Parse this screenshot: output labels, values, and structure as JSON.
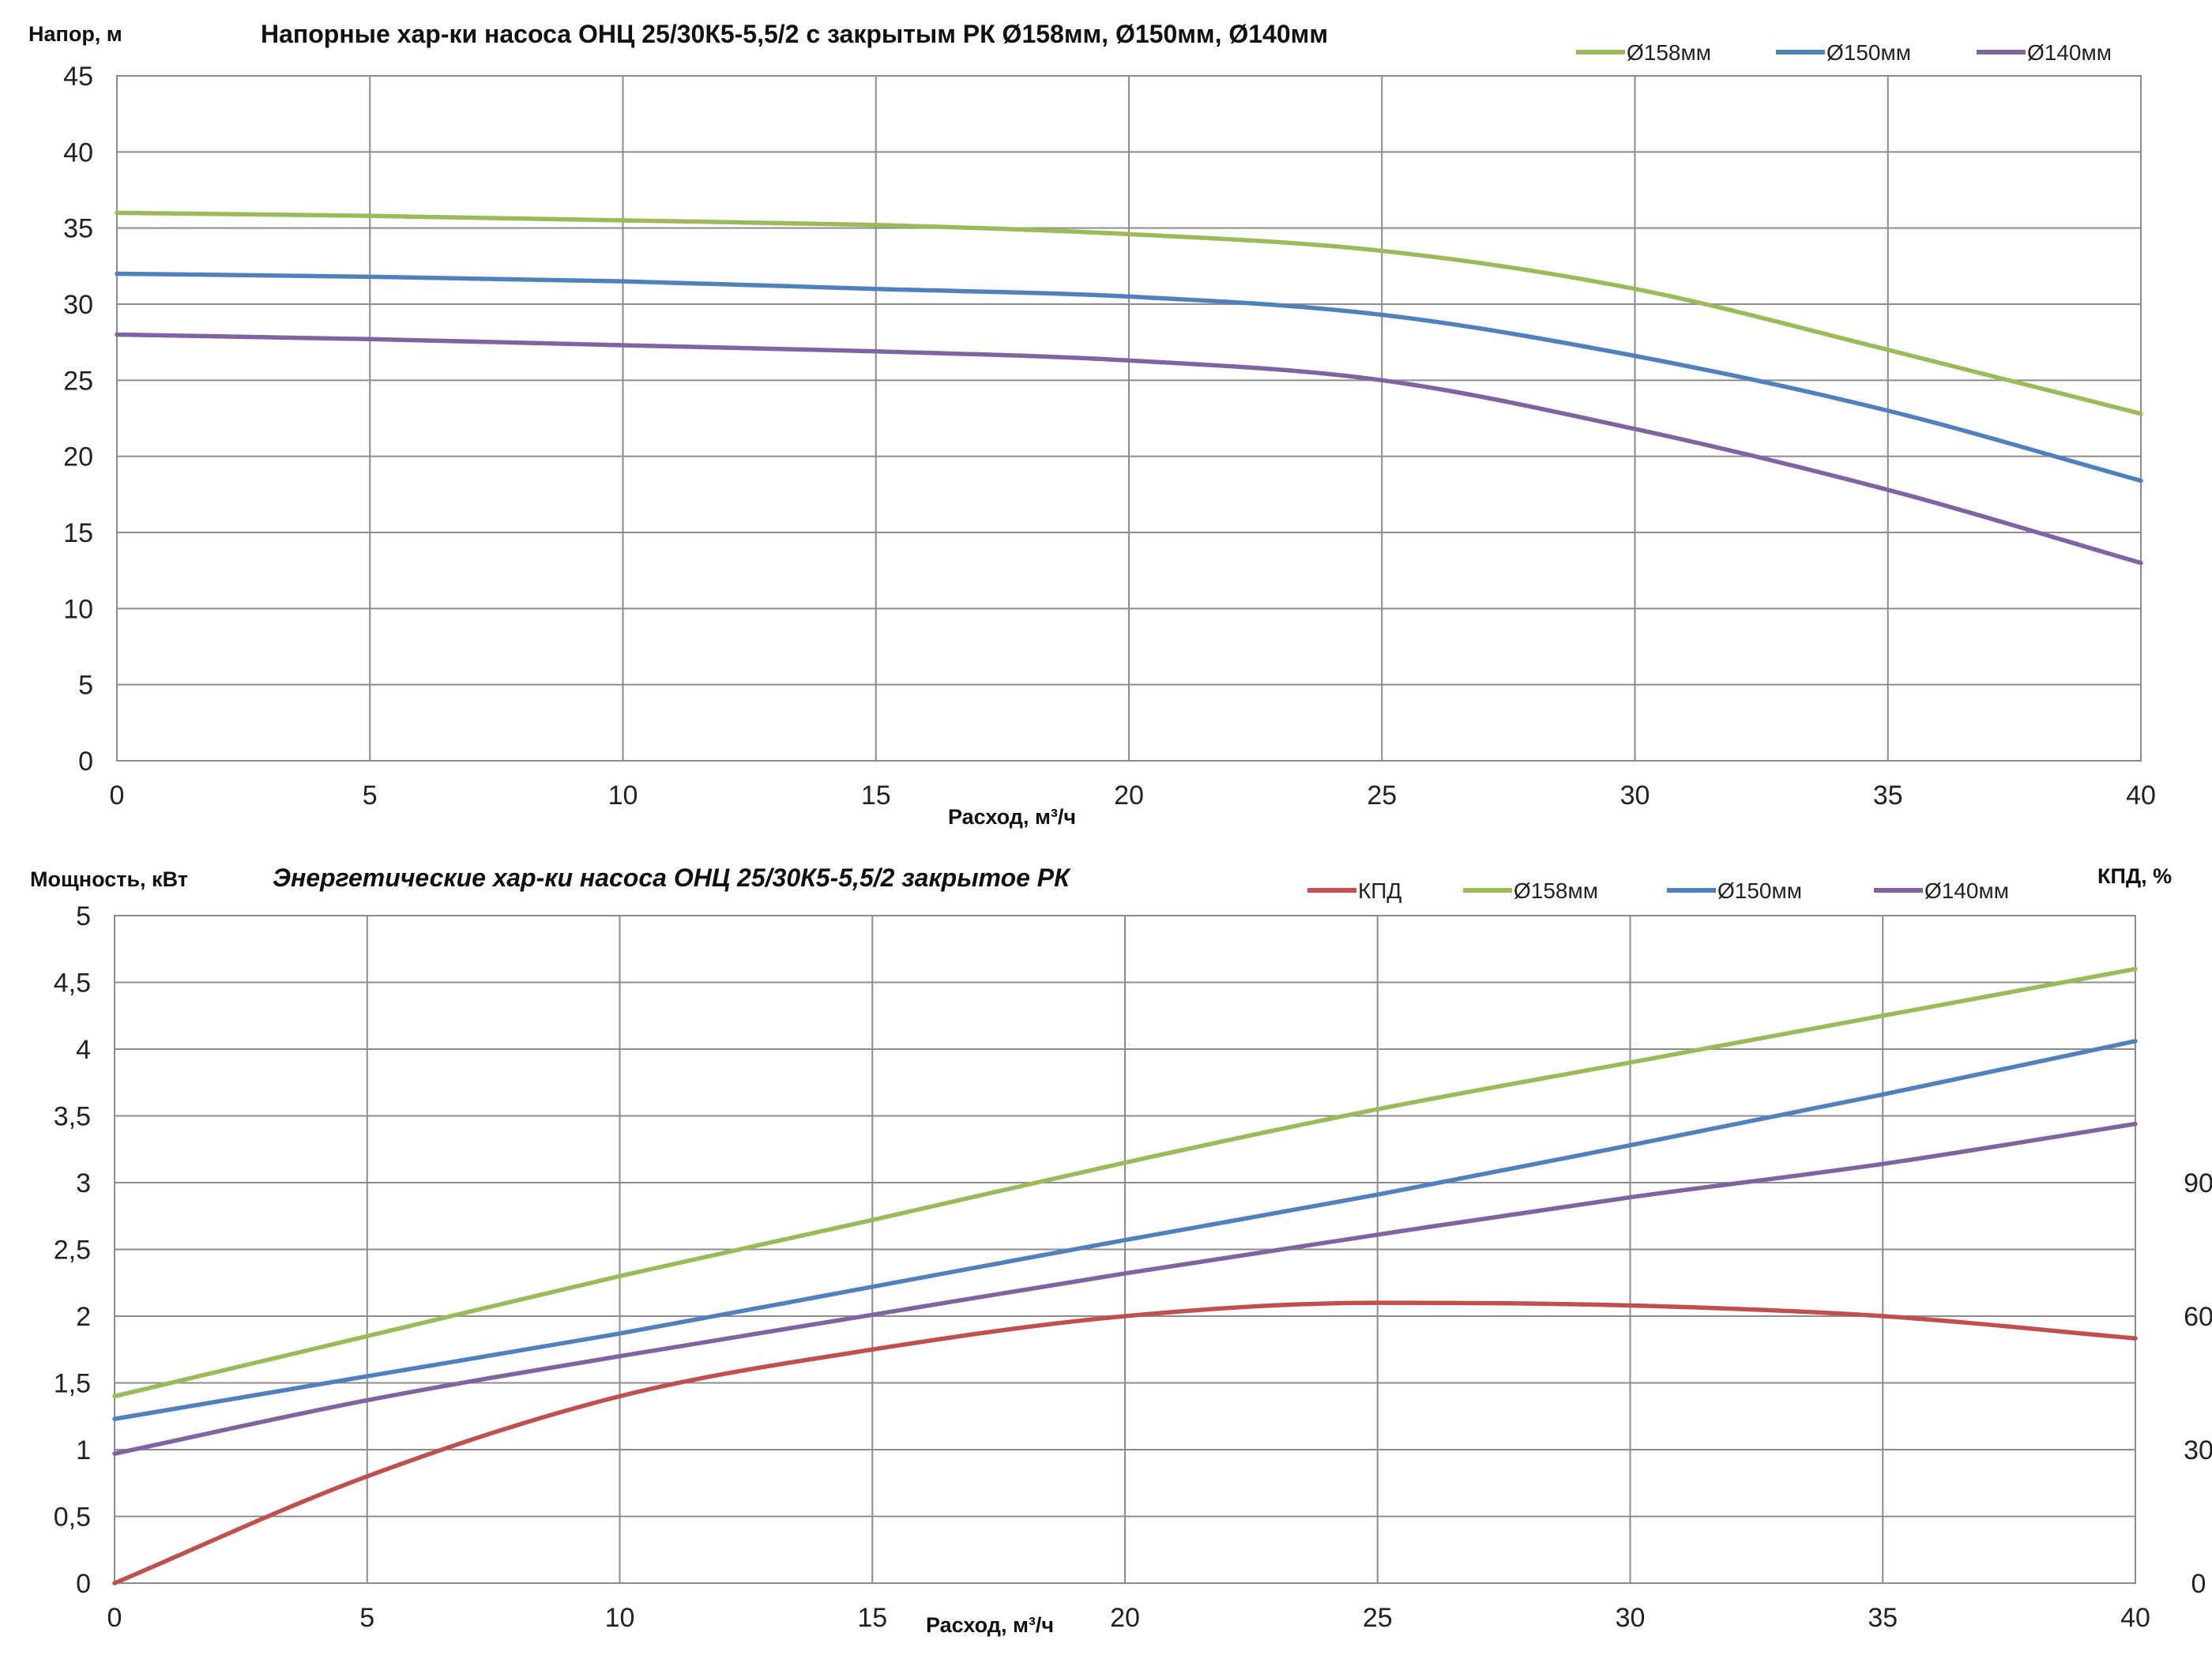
{
  "chart_data": [
    {
      "type": "line",
      "title": "Напорные хар-ки насоса ОНЦ 25/30К5-5,5/2 с закрытым РК Ø158мм, Ø150мм, Ø140мм",
      "xlabel": "Расход, м³/ч",
      "ylabel": "Напор, м",
      "xlim": [
        0,
        40
      ],
      "ylim": [
        0,
        45
      ],
      "x_ticks": [
        "0",
        "5",
        "10",
        "15",
        "20",
        "25",
        "30",
        "35",
        "40"
      ],
      "y_ticks": [
        "0",
        "5",
        "10",
        "15",
        "20",
        "25",
        "30",
        "35",
        "40",
        "45"
      ],
      "grid": true,
      "legend_position": "top-right",
      "x": [
        0,
        5,
        10,
        15,
        20,
        25,
        30,
        35,
        40
      ],
      "series": [
        {
          "name": "Ø158мм",
          "color": "#9bbb59",
          "values": [
            36.0,
            35.8,
            35.5,
            35.2,
            34.6,
            33.5,
            31.0,
            27.0,
            22.8
          ]
        },
        {
          "name": "Ø150мм",
          "color": "#4f81bd",
          "values": [
            32.0,
            31.8,
            31.5,
            31.0,
            30.5,
            29.3,
            26.6,
            23.0,
            18.4
          ]
        },
        {
          "name": "Ø140мм",
          "color": "#8064a2",
          "values": [
            28.0,
            27.7,
            27.3,
            26.9,
            26.3,
            25.0,
            21.8,
            17.8,
            13.0
          ]
        }
      ]
    },
    {
      "type": "line",
      "title": "Энергетические хар-ки насоса ОНЦ 25/30К5-5,5/2 закрытое РК",
      "xlabel": "Расход, м³/ч",
      "ylabel": "Мощность, кВт",
      "y2label": "КПД, %",
      "xlim": [
        0,
        40
      ],
      "ylim": [
        0,
        5
      ],
      "y2lim": [
        0,
        150
      ],
      "x_ticks": [
        "0",
        "5",
        "10",
        "15",
        "20",
        "25",
        "30",
        "35",
        "40"
      ],
      "y_ticks": [
        "0",
        "0,5",
        "1",
        "1,5",
        "2",
        "2,5",
        "3",
        "3,5",
        "4",
        "4,5",
        "5"
      ],
      "y2_ticks": [
        "0",
        "30",
        "60",
        "90"
      ],
      "grid": true,
      "legend_position": "top-right",
      "x": [
        0,
        5,
        10,
        15,
        20,
        25,
        30,
        35,
        40
      ],
      "series": [
        {
          "name": "КПД",
          "color": "#c0504d",
          "axis": "right",
          "values": [
            0,
            24,
            42,
            52.5,
            60,
            63,
            62.4,
            60,
            55
          ]
        },
        {
          "name": "Ø158мм",
          "color": "#9bbb59",
          "axis": "left",
          "values": [
            1.4,
            1.85,
            2.3,
            2.72,
            3.15,
            3.55,
            3.9,
            4.25,
            4.6
          ]
        },
        {
          "name": "Ø150мм",
          "color": "#4f81bd",
          "axis": "left",
          "values": [
            1.23,
            1.55,
            1.87,
            2.22,
            2.57,
            2.91,
            3.28,
            3.66,
            4.06
          ]
        },
        {
          "name": "Ø140мм",
          "color": "#8064a2",
          "axis": "left",
          "values": [
            0.97,
            1.37,
            1.7,
            2.01,
            2.32,
            2.61,
            2.89,
            3.14,
            3.44
          ]
        }
      ]
    }
  ]
}
